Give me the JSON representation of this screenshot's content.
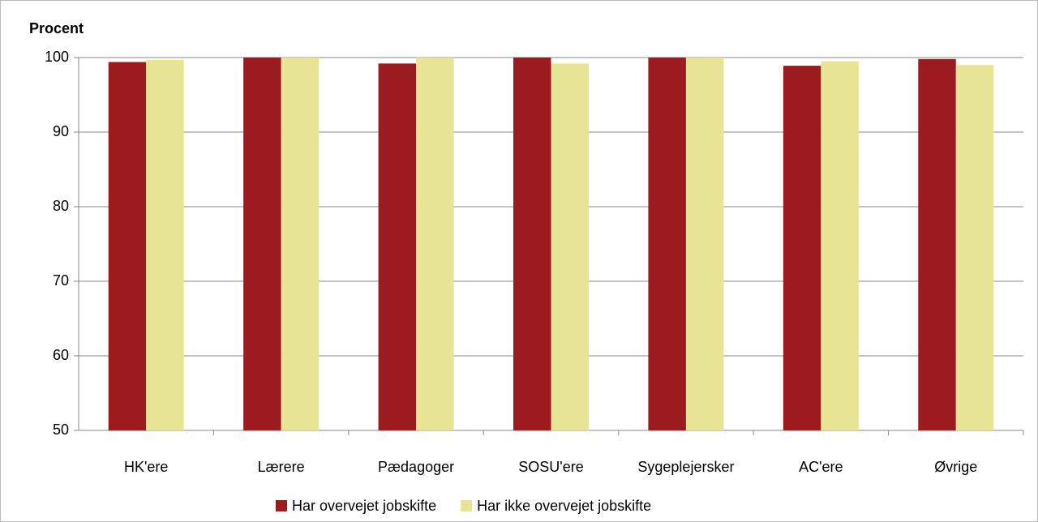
{
  "chart_data": {
    "type": "bar",
    "y_label": "Procent",
    "categories": [
      "HK'ere",
      "Lærere",
      "Pædagoger",
      "SOSU'ere",
      "Sygeplejersker",
      "AC'ere",
      "Øvrige"
    ],
    "series": [
      {
        "name": "Har overvejet jobskifte",
        "color": "#9b1b1f",
        "values": [
          99.4,
          100,
          99.2,
          100,
          100,
          98.9,
          99.8
        ]
      },
      {
        "name": "Har ikke overvejet jobskifte",
        "color": "#e8e496",
        "values": [
          99.7,
          100,
          100,
          99.2,
          100,
          99.5,
          99.0
        ]
      }
    ],
    "ylim": [
      50,
      100
    ],
    "yticks": [
      50,
      60,
      70,
      80,
      90,
      100
    ],
    "grid": true
  }
}
